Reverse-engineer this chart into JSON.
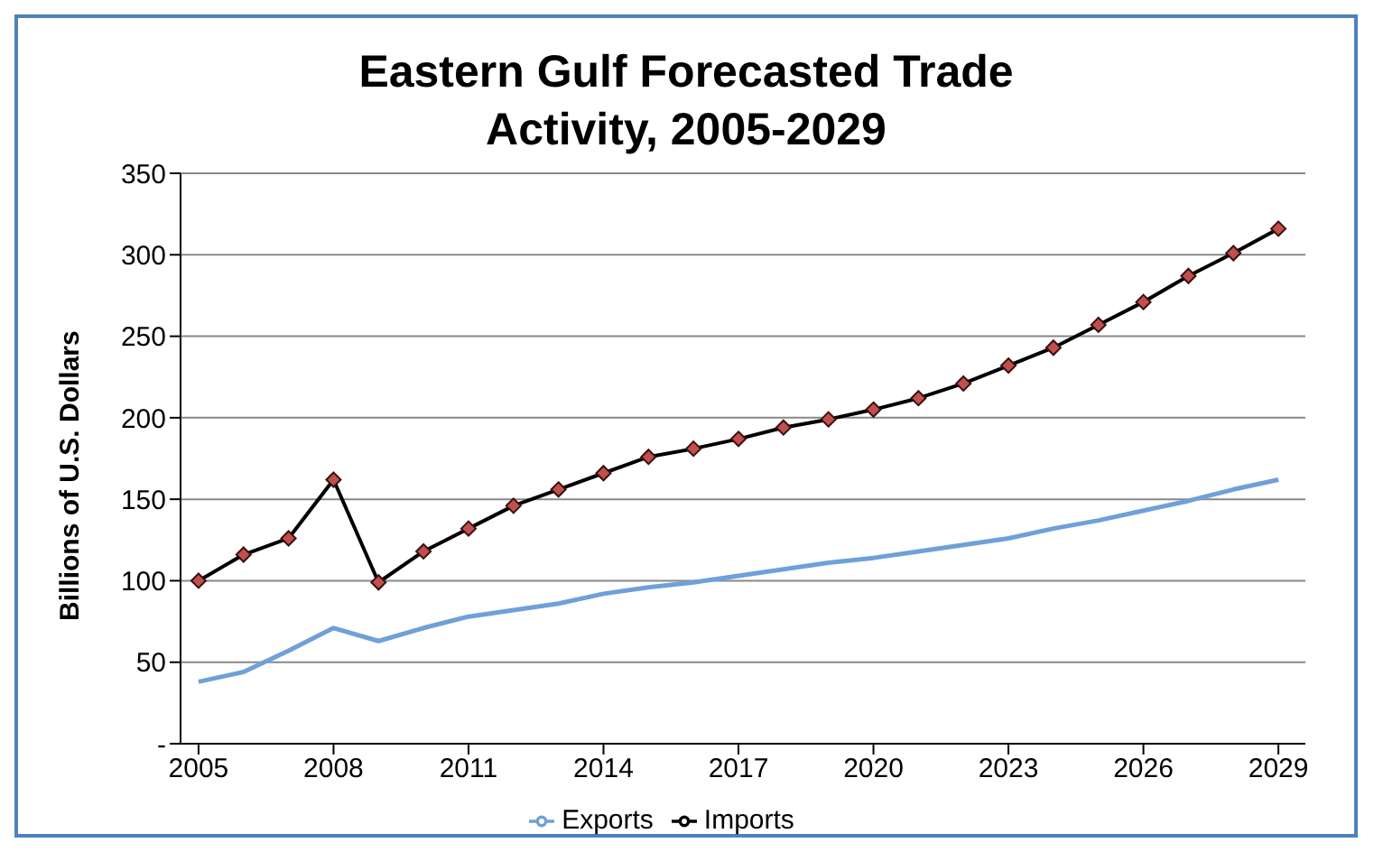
{
  "chart_data": {
    "type": "line",
    "title": "Eastern Gulf Forecasted Trade Activity, 2005-2029",
    "ylabel": "Billions of U.S. Dollars",
    "x": [
      2005,
      2006,
      2007,
      2008,
      2009,
      2010,
      2011,
      2012,
      2013,
      2014,
      2015,
      2016,
      2017,
      2018,
      2019,
      2020,
      2021,
      2022,
      2023,
      2024,
      2025,
      2026,
      2027,
      2028,
      2029
    ],
    "series": [
      {
        "name": "Imports",
        "color": "#000000",
        "marker": "diamond",
        "values": [
          100,
          116,
          126,
          162,
          99,
          118,
          132,
          146,
          156,
          166,
          176,
          181,
          187,
          194,
          199,
          205,
          212,
          221,
          232,
          243,
          257,
          271,
          287,
          301,
          316
        ]
      },
      {
        "name": "Exports",
        "color": "#6fa0d8",
        "marker": "none",
        "values": [
          38,
          44,
          57,
          71,
          63,
          71,
          78,
          82,
          86,
          92,
          96,
          99,
          103,
          107,
          111,
          114,
          118,
          122,
          126,
          132,
          137,
          143,
          149,
          156,
          162
        ]
      }
    ],
    "xlim": [
      2004.6,
      2029.6
    ],
    "xticks": [
      2005,
      2008,
      2011,
      2014,
      2017,
      2020,
      2023,
      2026,
      2029
    ],
    "ylim": [
      0,
      350
    ],
    "yticks": [
      {
        "value": 0,
        "label": "-"
      },
      50,
      100,
      150,
      200,
      250,
      300,
      350
    ],
    "grid": "y",
    "legend": "bottom"
  }
}
